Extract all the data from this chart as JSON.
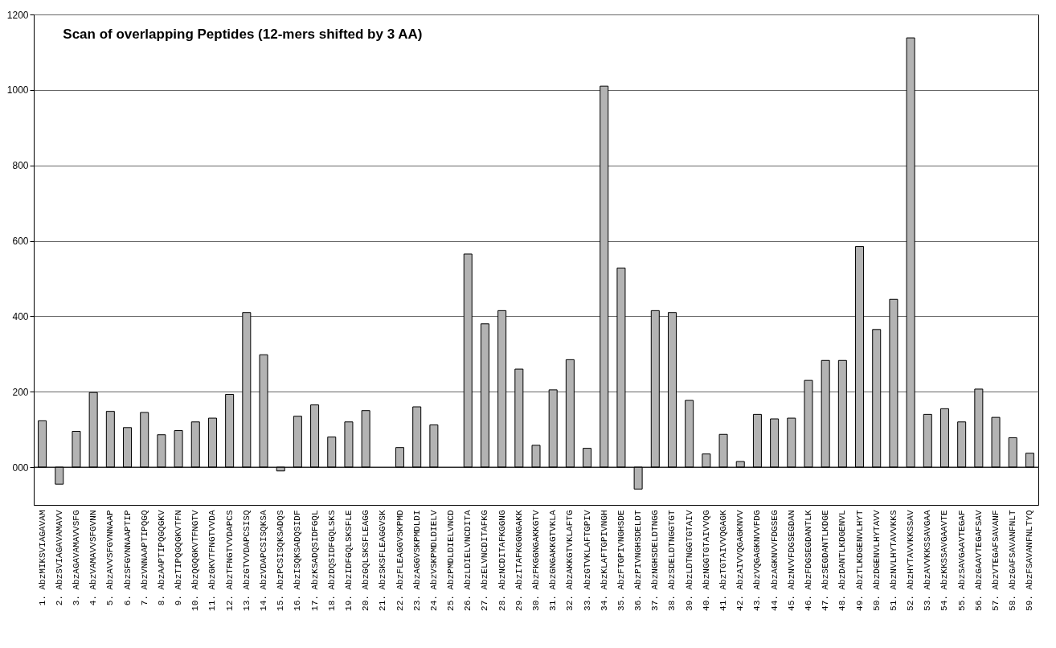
{
  "chart_data": {
    "type": "bar",
    "title": "Scan of overlapping Peptides (12-mers shifted by 3 AA)",
    "categories": [
      "1. AbzMIKSVIAGAVAM",
      "2. AbzSVIAGAVAMAVV",
      "3. AbzAGAVAMAVVSFG",
      "4. AbzVAMAVVSFGVNN",
      "5. AbzAVVSFGVNNAAP",
      "6. AbzSFGVNNAAPTIP",
      "7. AbzVNNAAPTIPQGQ",
      "8. AbzAAPTIPQGQGKV",
      "9. AbzTIPQGQGKVTFN",
      "10. AbzQGQGKVTFNGTV",
      "11. AbzGKVTFNGTVVDA",
      "12. AbzTFNGTVVDAPCS",
      "13. AbzGTVVDAPCSISQ",
      "14. AbzVDAPCSISQKSA",
      "15. AbzPCSISQKSADQS",
      "16. AbzISQKSADQSIDF",
      "17. AbzKSADQSIDFGQL",
      "18. AbzDQSIDFGQLSKS",
      "19. AbzIDFGQLSKSFLE",
      "20. AbzGQLSKSFLEAGG",
      "21. AbzSKSFLEAGGVSK",
      "22. AbzFLEAGGVSKPMD",
      "23. AbzAGGVSKPMDLDI",
      "24. AbzVSKPMDLDIELV",
      "25. AbzPMDLDIELVNCD",
      "26. AbzLDIELVNCDITA",
      "27. AbzELVNCDITAFKG",
      "28. AbzNCDITAFKGGNG",
      "29. AbzITAFKGGNGAKK",
      "30. AbzFKGGNGAKKGTV",
      "31. AbzGNGAKKGTVKLA",
      "32. AbzAKKGTVKLAFTG",
      "33. AbzGTVKLAFTGPIV",
      "34. AbzKLAFTGPIVNGH",
      "35. AbzFTGPIVNGHSDE",
      "36. AbzPIVNGHSDELDT",
      "37. AbzNGHSDELDTNGG",
      "38. AbzSDELDTNGGTGT",
      "39. AbzLDTNGGTGTAIV",
      "40. AbzNGGTGTAIVVQG",
      "41. AbzTGTAIVVQGAGK",
      "42. AbzAIVVQGAGKNVV",
      "43. AbzVQGAGKNVVFDG",
      "44. AbzAGKNVVFDGSEG",
      "45. AbzNVVFDGSEGDAN",
      "46. AbzFDGSEGDANTLK",
      "47. AbzSEGDANTLKDGE",
      "48. AbzDANTLKDGENVL",
      "49. AbzTLKDGENVLHYT",
      "50. AbzDGENVLHYTAVV",
      "51. AbzNVLHYTAVVKKS",
      "52. AbzHYTAVVKKSSAV",
      "53. AbzAVVKKSSAVGAA",
      "54. AbzKKSSAVGAAVTE",
      "55. AbzSAVGAAVTEGAF",
      "56. AbzGAAVTEGAFSAV",
      "57. AbzVTEGAFSAVANF",
      "58. AbzGAFSAVANFNLT",
      "59. AbzFSAVANFNLTYQ"
    ],
    "values": [
      123,
      -45,
      95,
      198,
      148,
      105,
      145,
      86,
      97,
      120,
      130,
      193,
      410,
      298,
      -10,
      135,
      165,
      80,
      120,
      150,
      null,
      52,
      160,
      112,
      null,
      565,
      380,
      415,
      260,
      58,
      205,
      285,
      50,
      1010,
      528,
      -58,
      415,
      410,
      177,
      35,
      87,
      15,
      140,
      128,
      130,
      230,
      283,
      283,
      585,
      365,
      445,
      1138,
      140,
      155,
      120,
      207,
      132,
      78,
      37
    ],
    "color": "#b3b3b3",
    "ylim": [
      -100,
      1200
    ],
    "yticks": [
      {
        "value": 0,
        "label": "000"
      },
      200,
      400,
      600,
      800,
      1000,
      1200
    ],
    "grid": "y"
  }
}
